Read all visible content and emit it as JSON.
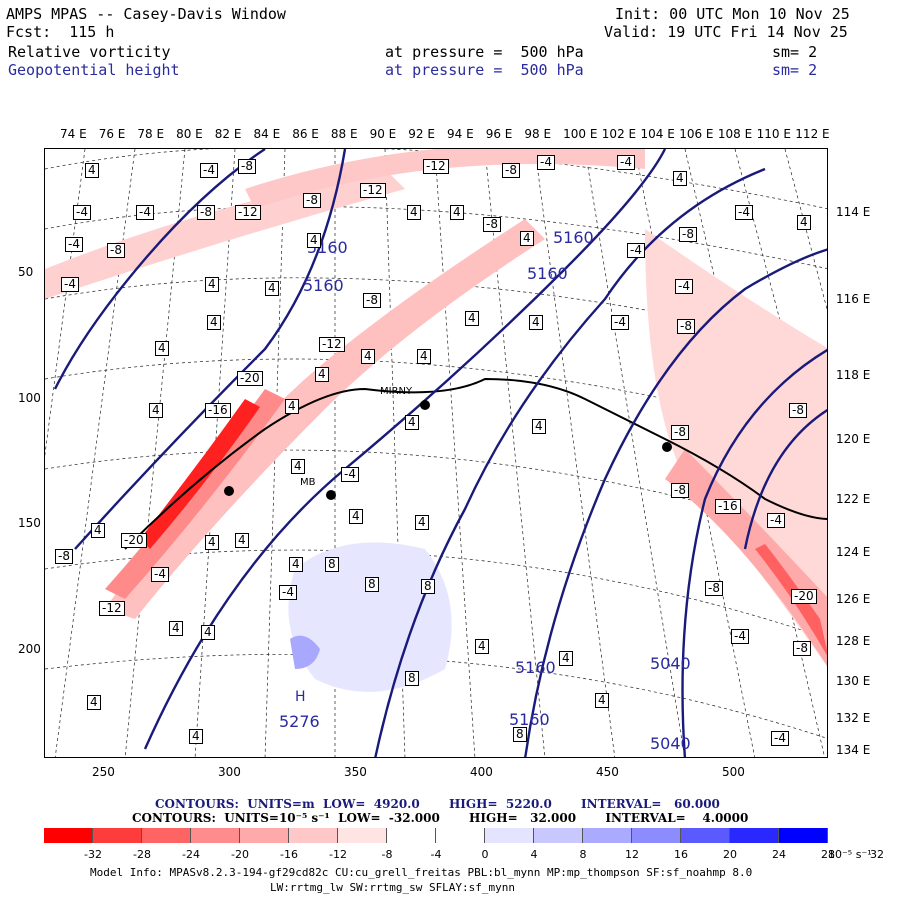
{
  "header": {
    "title": "AMPS MPAS -- Casey-Davis Window",
    "fcst": "Fcst:  115 h",
    "init": "Init: 00 UTC Mon 10 Nov 25",
    "valid": "Valid: 19 UTC Fri 14 Nov 25",
    "field1": {
      "name": "Relative vorticity",
      "level": "at pressure =  500 hPa",
      "sm": "sm= 2"
    },
    "field2": {
      "name": "Geopotential height",
      "level": "at pressure =  500 hPa",
      "sm": "sm= 2"
    }
  },
  "axes": {
    "top_lon": [
      "74 E",
      "76 E",
      "78 E",
      "80 E",
      "82 E",
      "84 E",
      "86 E",
      "88 E",
      "90 E",
      "92 E",
      "94 E",
      "96 E",
      "98 E",
      "100 E",
      "102 E",
      "104 E",
      "106 E",
      "108 E",
      "110 E",
      "112 E"
    ],
    "right_lon": [
      "114 E",
      "116 E",
      "118 E",
      "120 E",
      "122 E",
      "124 E",
      "126 E",
      "128 E",
      "130 E",
      "132 E",
      "134 E"
    ],
    "left_y": [
      "50",
      "100",
      "150",
      "200"
    ],
    "bottom_x": [
      "250",
      "300",
      "350",
      "400",
      "450",
      "500"
    ]
  },
  "map": {
    "station_labels": [
      "MIRNY",
      "MB"
    ],
    "height_labels": [
      "5160",
      "5160",
      "5160",
      "5160",
      "5160",
      "5160",
      "5040",
      "5040",
      "5276"
    ],
    "high_marker": "H",
    "vort_labels": [
      "-4",
      "-8",
      "-12",
      "-16",
      "-20",
      "4",
      "8"
    ]
  },
  "legend": {
    "contours1": "CONTOURS:  UNITS=m  LOW=  4920.0       HIGH=  5220.0       INTERVAL=   60.000",
    "contours2": "CONTOURS:  UNITS=10⁻⁵ s⁻¹  LOW=  -32.000       HIGH=   32.000       INTERVAL=    4.0000",
    "colorbar_colors": [
      "#ff0000",
      "#ff3c3c",
      "#ff6464",
      "#ff8c8c",
      "#ffaaaa",
      "#ffc8c8",
      "#ffe4e4",
      "#ffffff",
      "#ffffff",
      "#e4e4ff",
      "#c8c8ff",
      "#aaaaff",
      "#8c8cff",
      "#5a5aff",
      "#2828ff",
      "#0000ff"
    ],
    "colorbar_ticks": [
      "-32",
      "-28",
      "-24",
      "-20",
      "-16",
      "-12",
      "-8",
      "-4",
      "0",
      "4",
      "8",
      "12",
      "16",
      "20",
      "24",
      "28",
      "32"
    ],
    "colorbar_unit": "10⁻⁵ s⁻¹"
  },
  "footer": {
    "line1": "Model Info: MPASv8.2.3-194-gf29cd82c CU:cu_grell_freitas PBL:bl_mynn MP:mp_thompson SF:sf_noahmp 8.0",
    "line2": "LW:rrtmg_lw SW:rrtmg_sw SFLAY:sf_mynn"
  },
  "colors": {
    "navy": "#1a1a7a",
    "red": "#ff0000",
    "blue": "#0000ff"
  }
}
